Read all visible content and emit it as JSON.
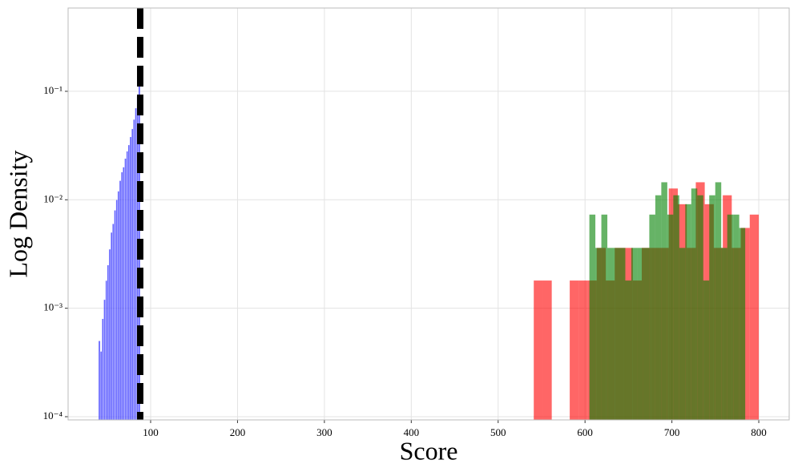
{
  "chart_data": {
    "type": "histogram",
    "x_label": "Score",
    "y_label": "Log Density",
    "log_y": true,
    "grid": true,
    "xlim": [
      5,
      835
    ],
    "ylim": [
      9.34e-05,
      0.586
    ],
    "xticks": [
      100,
      200,
      300,
      400,
      500,
      600,
      700,
      800
    ],
    "yticks": [
      {
        "value": 0.0001,
        "label": "10⁻⁴"
      },
      {
        "value": 0.001,
        "label": "10⁻³"
      },
      {
        "value": 0.01,
        "label": "10⁻²"
      },
      {
        "value": 0.1,
        "label": "10⁻¹"
      }
    ],
    "threshold_line": {
      "x": 88,
      "color": "#000000"
    },
    "series": [
      {
        "color": "#0000ff",
        "alpha": 0.6,
        "bins": [
          40,
          42,
          44,
          46,
          48,
          50,
          52,
          54,
          56,
          58,
          60,
          62,
          64,
          66,
          68,
          70,
          72,
          74,
          76,
          78,
          80,
          82,
          84,
          86,
          88
        ],
        "values": [
          0.0005,
          0.0004,
          0.0008,
          0.0012,
          0.0018,
          0.0025,
          0.0035,
          0.005,
          0.006,
          0.008,
          0.01,
          0.012,
          0.015,
          0.018,
          0.02,
          0.024,
          0.028,
          0.032,
          0.038,
          0.045,
          0.055,
          0.07,
          0.09,
          0.12
        ]
      },
      {
        "color": "#ff0000",
        "alpha": 0.6,
        "bins": [
          541,
          551.4,
          561.7,
          572.1,
          582.4,
          592.8,
          603.2,
          613.5,
          623.9,
          634.2,
          644.6,
          655,
          665.3,
          675.7,
          686,
          696.4,
          706.8,
          717.1,
          727.5,
          737.8,
          748.2,
          758.6,
          768.9,
          779.3,
          789.6,
          800
        ],
        "values": [
          0.0018,
          0.0018,
          0,
          0,
          0.0018,
          0.0018,
          0.0018,
          0.0036,
          0.0018,
          0.0036,
          0.0036,
          0.0018,
          0.0036,
          0.0036,
          0.0036,
          0.0127,
          0.0091,
          0.0036,
          0.0145,
          0.0091,
          0.0036,
          0.011,
          0.0036,
          0.0055,
          0.0073
        ]
      },
      {
        "color": "#008000",
        "alpha": 0.6,
        "bins": [
          605,
          611.9,
          618.8,
          625.7,
          632.6,
          639.5,
          646.4,
          653.3,
          660.2,
          667.1,
          674,
          680.9,
          687.8,
          694.7,
          701.6,
          708.5,
          715.4,
          722.3,
          729.2,
          736.1,
          743,
          749.9,
          756.8,
          763.7,
          770.6,
          777.5,
          784.4
        ],
        "values": [
          0.0073,
          0.0036,
          0.0073,
          0.0036,
          0.0036,
          0.0036,
          0.0018,
          0.0036,
          0.0036,
          0.0036,
          0.0073,
          0.011,
          0.0145,
          0.0073,
          0.011,
          0.0036,
          0.0091,
          0.0127,
          0.011,
          0.0018,
          0.011,
          0.0145,
          0.0036,
          0.0073,
          0.0073,
          0.0055
        ]
      }
    ]
  }
}
